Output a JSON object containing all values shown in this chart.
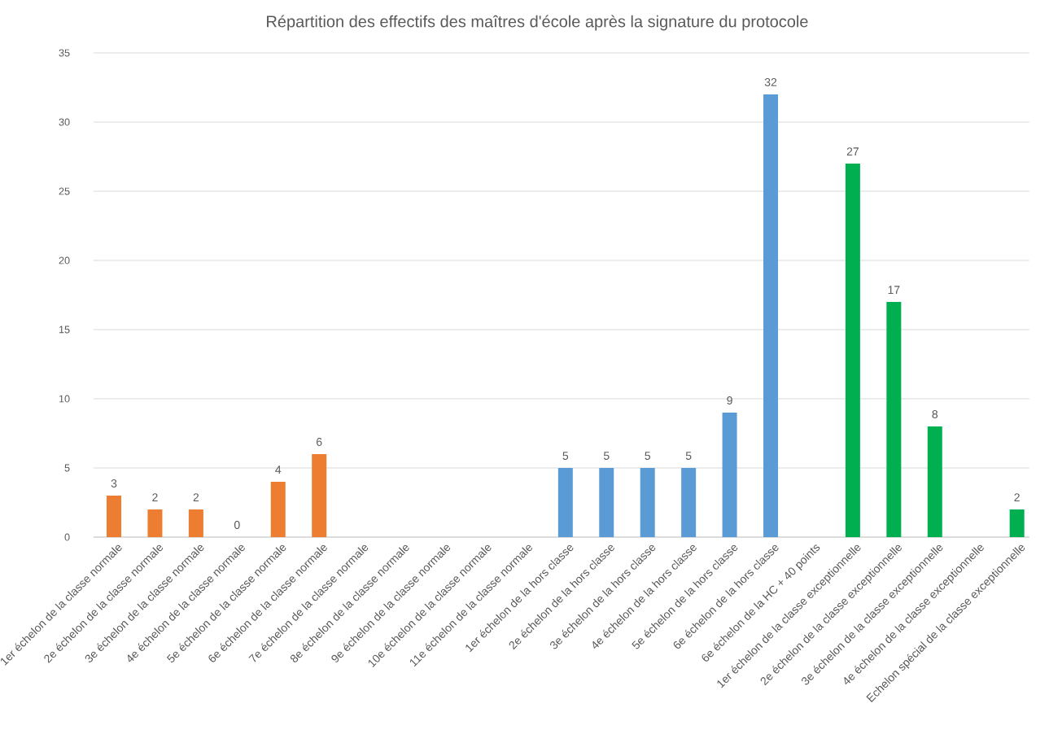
{
  "chart_data": {
    "type": "bar",
    "title": "Répartition des effectifs des maîtres d'école après la signature du protocole",
    "categories": [
      "1er échelon de la classe normale",
      "2e échelon de la classe normale",
      "3e échelon de la classe normale",
      "4e échelon de la classe normale",
      "5e échelon de la classe normale",
      "6e échelon de la classe normale",
      "7e échelon de la classe normale",
      "8e échelon de la classe normale",
      "9e échelon de la classe normale",
      "10e échelon de la classe normale",
      "11e échelon de la classe normale",
      "1er échelon de la hors classe",
      "2e échelon de la hors classe",
      "3e échelon de la hors classe",
      "4e échelon de la hors classe",
      "5e échelon de la hors classe",
      "6e échelon de la hors classe",
      "6e échelon de la HC + 40 points",
      "1er échelon de la classe exceptionnelle",
      "2e échelon de la classe exceptionnelle",
      "3e échelon de la classe exceptionnelle",
      "4e échelon de la classe exceptionnelle",
      "Echelon spécial de la classe exceptionnelle"
    ],
    "values": [
      3,
      2,
      2,
      0,
      4,
      6,
      null,
      null,
      null,
      null,
      null,
      5,
      5,
      5,
      5,
      9,
      32,
      null,
      27,
      17,
      8,
      null,
      2
    ],
    "colors": [
      "#ed7d31",
      "#ed7d31",
      "#ed7d31",
      "#ed7d31",
      "#ed7d31",
      "#ed7d31",
      "#ed7d31",
      "#ed7d31",
      "#ed7d31",
      "#ed7d31",
      "#ed7d31",
      "#5b9bd5",
      "#5b9bd5",
      "#5b9bd5",
      "#5b9bd5",
      "#5b9bd5",
      "#5b9bd5",
      "#5b9bd5",
      "#00b050",
      "#00b050",
      "#00b050",
      "#00b050",
      "#00b050"
    ],
    "ylim": [
      0,
      35
    ],
    "yticks": [
      0,
      5,
      10,
      15,
      20,
      25,
      30,
      35
    ],
    "grid": "y",
    "data_labels": true
  }
}
